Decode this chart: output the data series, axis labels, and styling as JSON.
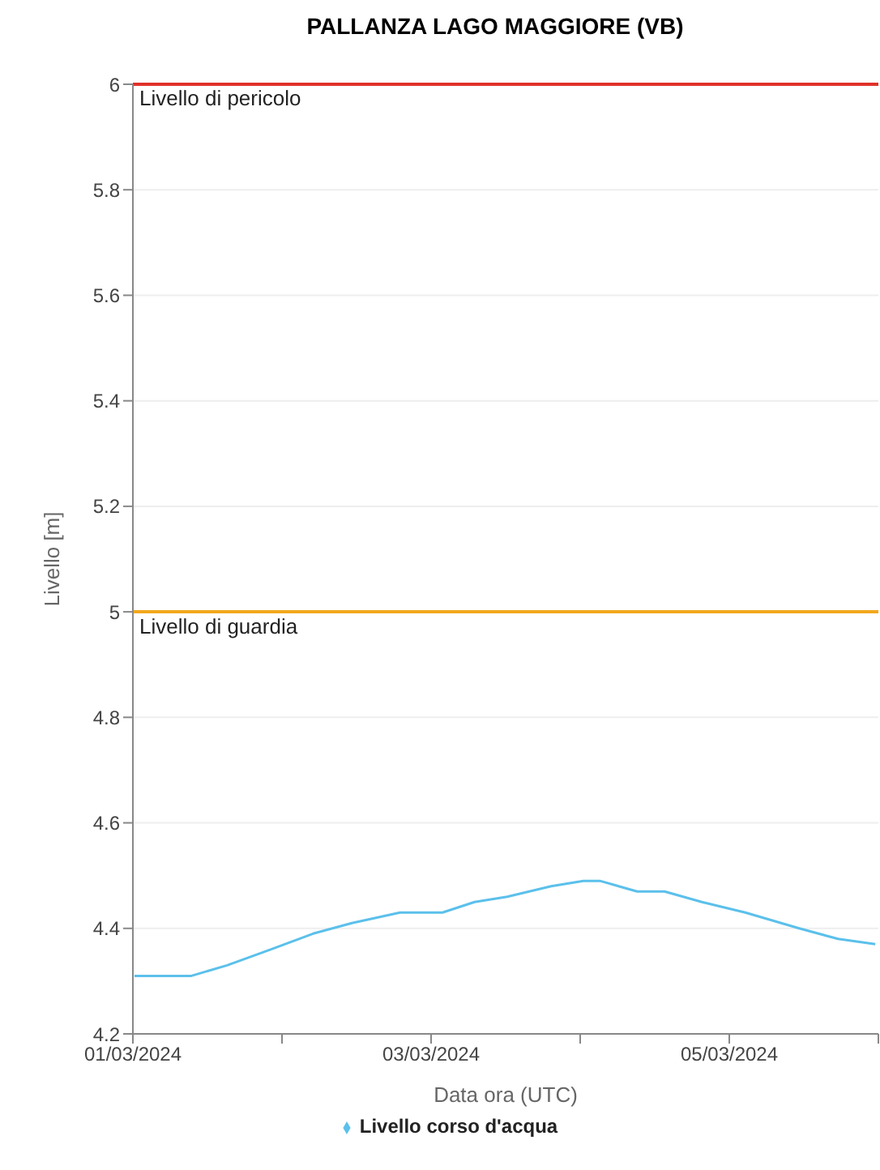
{
  "chart_data": {
    "type": "line",
    "title": "PALLANZA LAGO MAGGIORE (VB)",
    "xlabel": "Data ora (UTC)",
    "ylabel": "Livello [m]",
    "series": [
      {
        "name": "Livello corso d'acqua",
        "color": "#5bc0eb",
        "x": [
          "2024-03-01T00:15",
          "2024-03-01T05:30",
          "2024-03-01T09:25",
          "2024-03-01T15:10",
          "2024-03-01T22:10",
          "2024-03-02T05:00",
          "2024-03-02T11:15",
          "2024-03-02T19:00",
          "2024-03-03T01:50",
          "2024-03-03T07:00",
          "2024-03-03T12:15",
          "2024-03-03T19:20",
          "2024-03-04T00:30",
          "2024-03-04T03:10",
          "2024-03-04T09:10",
          "2024-03-04T13:35",
          "2024-03-04T19:35",
          "2024-03-05T02:35",
          "2024-03-05T11:15",
          "2024-03-05T17:30",
          "2024-03-05T23:30"
        ],
        "values": [
          4.31,
          4.31,
          4.31,
          4.33,
          4.36,
          4.39,
          4.41,
          4.43,
          4.43,
          4.45,
          4.46,
          4.48,
          4.49,
          4.49,
          4.47,
          4.47,
          4.45,
          4.43,
          4.4,
          4.38,
          4.37
        ]
      }
    ],
    "xlim": [
      "2024-03-01",
      "2024-03-06"
    ],
    "xticks": [
      {
        "value": "2024-03-01",
        "label": "01/03/2024"
      },
      {
        "value": "2024-03-02",
        "label": null
      },
      {
        "value": "2024-03-03",
        "label": "03/03/2024"
      },
      {
        "value": "2024-03-04",
        "label": null
      },
      {
        "value": "2024-03-05",
        "label": "05/03/2024"
      },
      {
        "value": "2024-03-06",
        "label": null
      }
    ],
    "ylim": [
      4.2,
      6
    ],
    "yticks": [
      4.2,
      4.4,
      4.6,
      4.8,
      5,
      5.2,
      5.4,
      5.6,
      5.8,
      6
    ],
    "ref_lines": [
      {
        "axis": "y",
        "value": 6,
        "label": "Livello di pericolo",
        "color": "#e0312a"
      },
      {
        "axis": "y",
        "value": 5,
        "label": "Livello di guardia",
        "color": "#f2a81d"
      }
    ],
    "grid": "y",
    "legend": "bottom",
    "marker": "none",
    "line_style": "solid"
  }
}
